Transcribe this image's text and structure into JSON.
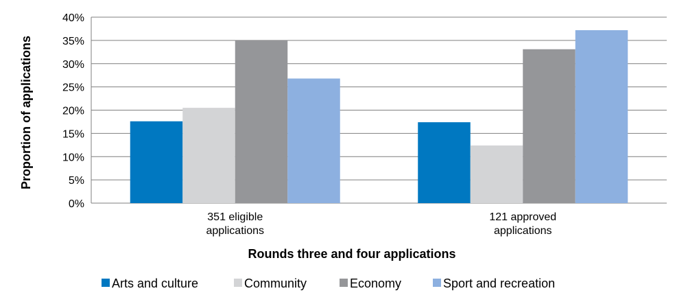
{
  "chart_data": {
    "type": "bar",
    "title": "",
    "xlabel": "Rounds three and four applications",
    "ylabel": "Proportion of applications",
    "categories": [
      [
        "351 eligible",
        "applications"
      ],
      [
        "121 approved",
        "applications"
      ]
    ],
    "series": [
      {
        "name": "Arts and culture",
        "color": "#0078c1",
        "values": [
          17.6,
          17.4
        ]
      },
      {
        "name": "Community",
        "color": "#d3d4d6",
        "values": [
          20.5,
          12.4
        ]
      },
      {
        "name": "Economy",
        "color": "#959699",
        "values": [
          35.0,
          33.1
        ]
      },
      {
        "name": "Sport and recreation",
        "color": "#8db0e0",
        "values": [
          26.8,
          37.2
        ]
      }
    ],
    "ylim": [
      0,
      40
    ],
    "yticks": [
      0,
      5,
      10,
      15,
      20,
      25,
      30,
      35,
      40
    ],
    "ytick_format": "percent",
    "grid": true,
    "legend_position": "bottom"
  }
}
